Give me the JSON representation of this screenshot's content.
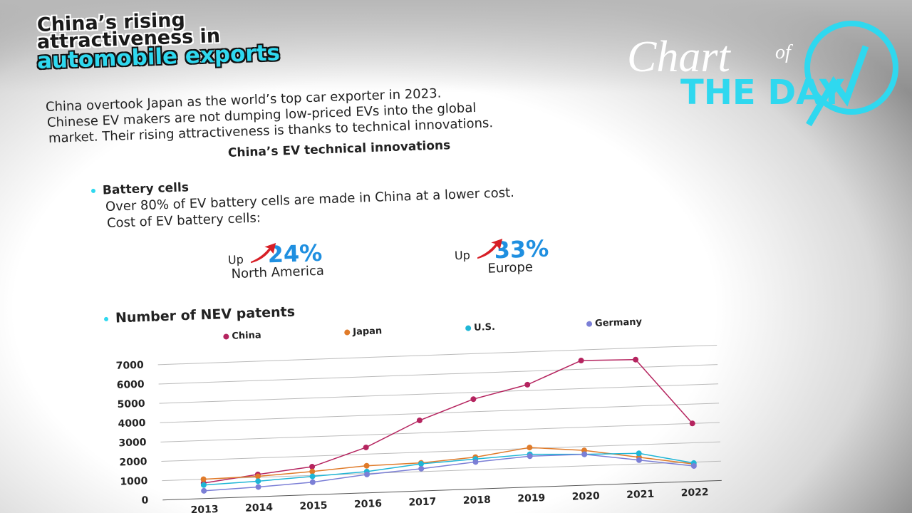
{
  "header": {
    "title_lines": [
      "China’s rising",
      "attractiveness in",
      "automobile exports"
    ],
    "logo": {
      "word": "Chart",
      "of": "of",
      "tagline": "THE DAY"
    }
  },
  "intro": [
    "China overtook Japan as the world’s top car exporter in 2023.",
    "Chinese EV makers are not dumping low-priced EVs into the global",
    "market. Their rising attractiveness is thanks to technical innovations."
  ],
  "section_title": "China’s EV technical innovations",
  "battery": {
    "heading": "Battery cells",
    "lines": [
      "Over 80% of EV battery cells are made in China at a lower cost.",
      "Cost of EV battery cells:"
    ],
    "stats": [
      {
        "prefix": "Up",
        "value": "24%",
        "region": "North America"
      },
      {
        "prefix": "Up",
        "value": "33%",
        "region": "Europe"
      }
    ]
  },
  "chart_data": {
    "type": "line",
    "title": "Number of NEV patents",
    "categories": [
      "2013",
      "2014",
      "2015",
      "2016",
      "2017",
      "2018",
      "2019",
      "2020",
      "2021",
      "2022"
    ],
    "series": [
      {
        "name": "China",
        "color": "#b5245f",
        "values": [
          800,
          1150,
          1450,
          2350,
          3650,
          4650,
          5300,
          6450,
          6400,
          3000
        ]
      },
      {
        "name": "Japan",
        "color": "#e07b2a",
        "values": [
          1000,
          1050,
          1200,
          1400,
          1450,
          1650,
          2050,
          1800,
          1350,
          900
        ]
      },
      {
        "name": "U.S.",
        "color": "#1fb6d6",
        "values": [
          700,
          800,
          950,
          1100,
          1400,
          1550,
          1700,
          1600,
          1550,
          950
        ]
      },
      {
        "name": "Germany",
        "color": "#7b7fd6",
        "values": [
          400,
          500,
          650,
          950,
          1150,
          1400,
          1600,
          1600,
          1200,
          800
        ]
      }
    ],
    "ylim": [
      0,
      7000
    ],
    "yticks": [
      0,
      1000,
      2000,
      3000,
      4000,
      5000,
      6000,
      7000
    ],
    "grid": true
  }
}
